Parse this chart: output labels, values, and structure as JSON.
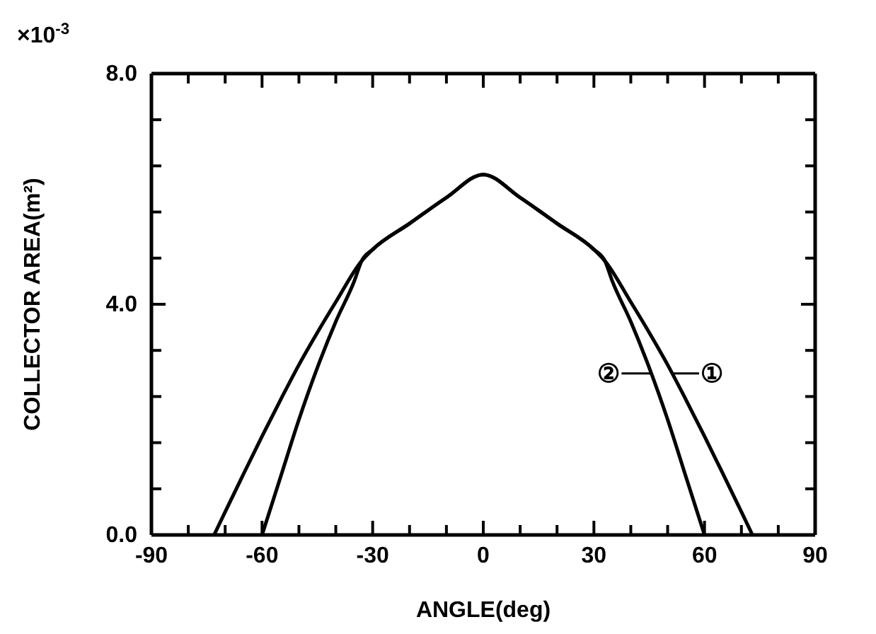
{
  "chart_data": {
    "type": "line",
    "xlabel": "ANGLE(deg)",
    "ylabel": "COLLECTOR AREA(m²)",
    "annotations": [
      "×10$^{-3}$"
    ],
    "xlim": [
      -90,
      90
    ],
    "ylim": [
      0,
      8
    ],
    "xticks": [
      -90,
      {
        "value": -80,
        "label": null
      },
      {
        "value": -70,
        "label": null
      },
      -60,
      {
        "value": -50,
        "label": null
      },
      {
        "value": -40,
        "label": null
      },
      -30,
      {
        "value": -20,
        "label": null
      },
      {
        "value": -10,
        "label": null
      },
      0,
      {
        "value": 10,
        "label": null
      },
      {
        "value": 20,
        "label": null
      },
      30,
      {
        "value": 40,
        "label": null
      },
      {
        "value": 50,
        "label": null
      },
      60,
      {
        "value": 70,
        "label": null
      },
      {
        "value": 80,
        "label": null
      },
      90
    ],
    "yticks": [
      {
        "value": 0,
        "label": "0.0"
      },
      {
        "value": 0.8,
        "label": null
      },
      {
        "value": 1.6,
        "label": null
      },
      {
        "value": 2.4,
        "label": null
      },
      {
        "value": 3.2,
        "label": null
      },
      {
        "value": 4,
        "label": "4.0"
      },
      {
        "value": 4.8,
        "label": null
      },
      {
        "value": 5.6,
        "label": null
      },
      {
        "value": 6.4,
        "label": null
      },
      {
        "value": 7.2,
        "label": null
      },
      {
        "value": 8,
        "label": "8.0"
      }
    ],
    "grid": false,
    "legend": "right",
    "marker": "none",
    "line_style": "solid",
    "series": [
      {
        "name": "①",
        "color": "#000000",
        "x": [
          -73,
          -70,
          -65,
          -60,
          -55,
          -50,
          -45,
          -40,
          -33,
          -30,
          -20,
          -10,
          0,
          10,
          20,
          30,
          33,
          40,
          45,
          50,
          55,
          60,
          65,
          70,
          73
        ],
        "values": [
          0,
          0.4,
          1.06,
          1.71,
          2.34,
          2.95,
          3.51,
          4.04,
          4.75,
          4.95,
          5.4,
          5.85,
          6.25,
          5.85,
          5.4,
          4.95,
          4.75,
          4.04,
          3.51,
          2.95,
          2.34,
          1.71,
          1.06,
          0.4,
          0
        ]
      },
      {
        "name": "②",
        "color": "#000000",
        "x": [
          -60,
          -55,
          -50,
          -45,
          -40,
          -35,
          -33,
          -30,
          -20,
          -10,
          0,
          10,
          20,
          30,
          33,
          35,
          40,
          45,
          50,
          55,
          60
        ],
        "values": [
          0,
          1.0,
          2.0,
          2.9,
          3.7,
          4.4,
          4.75,
          4.95,
          5.4,
          5.85,
          6.25,
          5.85,
          5.4,
          4.95,
          4.75,
          4.4,
          3.7,
          2.9,
          2.0,
          1.0,
          0
        ]
      }
    ]
  }
}
